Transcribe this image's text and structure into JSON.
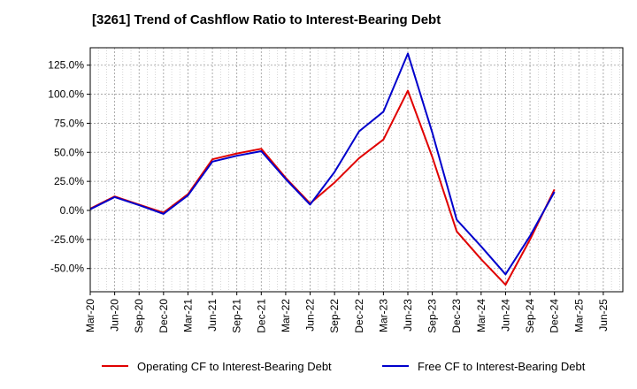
{
  "chart_data": {
    "type": "line",
    "title": "[3261]  Trend of Cashflow Ratio to Interest-Bearing Debt",
    "xlabel": "",
    "ylabel": "",
    "x": [
      "Mar-20",
      "Jun-20",
      "Sep-20",
      "Dec-20",
      "Mar-21",
      "Jun-21",
      "Sep-21",
      "Dec-21",
      "Mar-22",
      "Jun-22",
      "Sep-22",
      "Dec-22",
      "Mar-23",
      "Jun-23",
      "Sep-23",
      "Dec-23",
      "Mar-24",
      "Jun-24",
      "Sep-24",
      "Dec-24",
      "Mar-25",
      "Jun-25"
    ],
    "ylim": [
      -70,
      140
    ],
    "yticks": [
      125,
      100,
      75,
      50,
      25,
      0,
      -25,
      -50
    ],
    "ytick_labels": [
      "125.0%",
      "100.0%",
      "75.0%",
      "50.0%",
      "25.0%",
      "0.0%",
      "-25.0%",
      "-50.0%"
    ],
    "grid": true,
    "legend_position": "bottom",
    "series": [
      {
        "name": "Operating CF to Interest-Bearing Debt",
        "color": "#e00000",
        "values": [
          1.5,
          12,
          5,
          -2,
          14,
          44,
          49,
          53,
          28,
          6,
          24,
          45,
          61,
          103,
          46,
          -18,
          -42,
          -64,
          -25,
          18,
          null,
          null
        ]
      },
      {
        "name": "Free CF to Interest-Bearing Debt",
        "color": "#0000cc",
        "values": [
          1,
          11.5,
          4.5,
          -3,
          13,
          42,
          47,
          51,
          27,
          5,
          33,
          68,
          85,
          135,
          67,
          -8,
          -31,
          -55,
          -22,
          16,
          null,
          null
        ]
      }
    ]
  }
}
